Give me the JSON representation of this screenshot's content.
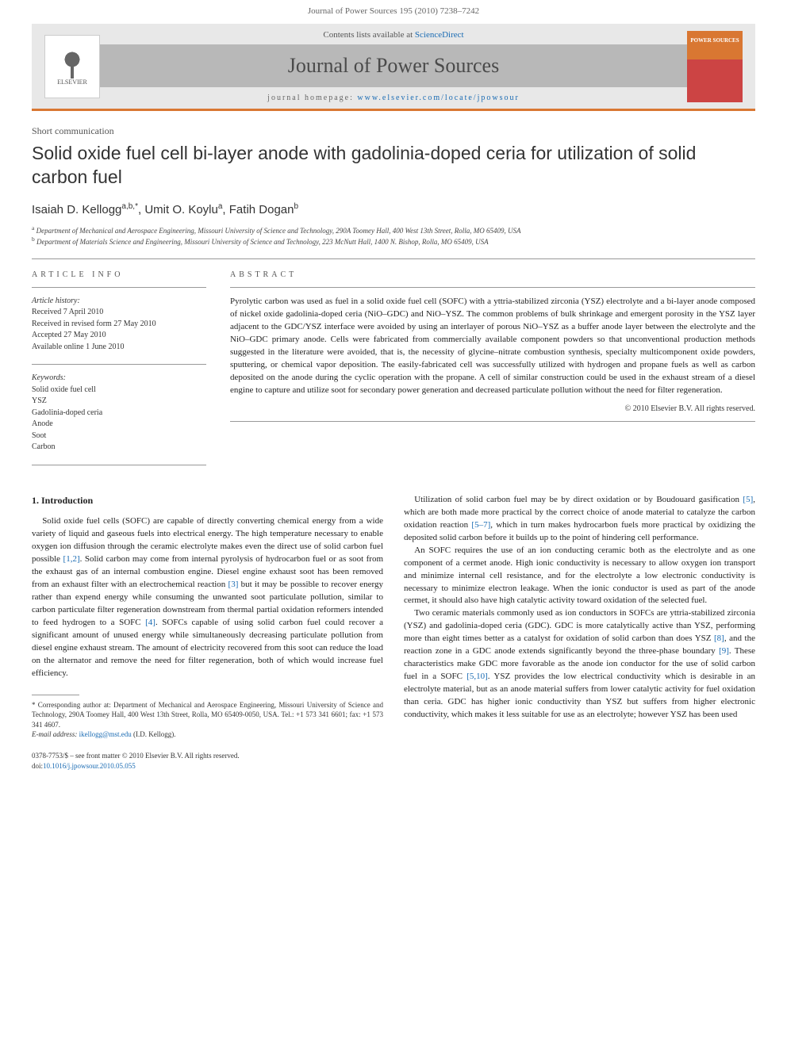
{
  "header": {
    "citation": "Journal of Power Sources 195 (2010) 7238–7242",
    "contents_available": "Contents lists available at",
    "sciencedirect": "ScienceDirect",
    "journal_name": "Journal of Power Sources",
    "homepage_label": "journal homepage:",
    "homepage_url": "www.elsevier.com/locate/jpowsour",
    "elsevier_label": "ELSEVIER",
    "cover_text": "POWER SOURCES"
  },
  "article": {
    "type": "Short communication",
    "title": "Solid oxide fuel cell bi-layer anode with gadolinia-doped ceria for utilization of solid carbon fuel",
    "authors_html": "Isaiah D. Kellogg",
    "author1": "Isaiah D. Kellogg",
    "author1_sup": "a,b,*",
    "author2": "Umit O. Koylu",
    "author2_sup": "a",
    "author3": "Fatih Dogan",
    "author3_sup": "b",
    "affil_a": "Department of Mechanical and Aerospace Engineering, Missouri University of Science and Technology, 290A Toomey Hall, 400 West 13th Street, Rolla, MO 65409, USA",
    "affil_b": "Department of Materials Science and Engineering, Missouri University of Science and Technology, 223 McNutt Hall, 1400 N. Bishop, Rolla, MO 65409, USA"
  },
  "info": {
    "section_label": "ARTICLE INFO",
    "history_label": "Article history:",
    "received": "Received 7 April 2010",
    "revised": "Received in revised form 27 May 2010",
    "accepted": "Accepted 27 May 2010",
    "online": "Available online 1 June 2010",
    "keywords_label": "Keywords:",
    "kw1": "Solid oxide fuel cell",
    "kw2": "YSZ",
    "kw3": "Gadolinia-doped ceria",
    "kw4": "Anode",
    "kw5": "Soot",
    "kw6": "Carbon"
  },
  "abstract": {
    "label": "ABSTRACT",
    "text": "Pyrolytic carbon was used as fuel in a solid oxide fuel cell (SOFC) with a yttria-stabilized zirconia (YSZ) electrolyte and a bi-layer anode composed of nickel oxide gadolinia-doped ceria (NiO–GDC) and NiO–YSZ. The common problems of bulk shrinkage and emergent porosity in the YSZ layer adjacent to the GDC/YSZ interface were avoided by using an interlayer of porous NiO–YSZ as a buffer anode layer between the electrolyte and the NiO–GDC primary anode. Cells were fabricated from commercially available component powders so that unconventional production methods suggested in the literature were avoided, that is, the necessity of glycine–nitrate combustion synthesis, specialty multicomponent oxide powders, sputtering, or chemical vapor deposition. The easily-fabricated cell was successfully utilized with hydrogen and propane fuels as well as carbon deposited on the anode during the cyclic operation with the propane. A cell of similar construction could be used in the exhaust stream of a diesel engine to capture and utilize soot for secondary power generation and decreased particulate pollution without the need for filter regeneration.",
    "copyright": "© 2010 Elsevier B.V. All rights reserved."
  },
  "body": {
    "intro_heading": "1. Introduction",
    "p1a": "Solid oxide fuel cells (SOFC) are capable of directly converting chemical energy from a wide variety of liquid and gaseous fuels into electrical energy. The high temperature necessary to enable oxygen ion diffusion through the ceramic electrolyte makes even the direct use of solid carbon fuel possible ",
    "r12": "[1,2]",
    "p1b": ". Solid carbon may come from internal pyrolysis of hydrocarbon fuel or as soot from the exhaust gas of an internal combustion engine. Diesel engine exhaust soot has been removed from an exhaust filter with an electrochemical reaction ",
    "r3": "[3]",
    "p1c": " but it may be possible to recover energy rather than expend energy while consuming the unwanted soot particulate pollution, similar to carbon particulate filter regeneration downstream from thermal partial oxidation reformers intended to feed hydrogen to a SOFC ",
    "r4": "[4]",
    "p1d": ". SOFCs capable of using solid carbon fuel could recover a significant amount of unused energy while simultaneously decreasing particulate pollution from diesel engine exhaust stream. The amount of electricity recovered from this soot can reduce the load on the alternator and remove the need for filter regeneration, both of which would increase fuel efficiency.",
    "p2a": "Utilization of solid carbon fuel may be by direct oxidation or by Boudouard gasification ",
    "r5": "[5]",
    "p2b": ", which are both made more practical by the correct choice of anode material to catalyze the carbon oxidation reaction ",
    "r57": "[5–7]",
    "p2c": ", which in turn makes hydrocarbon fuels more practical by oxidizing the deposited solid carbon before it builds up to the point of hindering cell performance.",
    "p3": "An SOFC requires the use of an ion conducting ceramic both as the electrolyte and as one component of a cermet anode. High ionic conductivity is necessary to allow oxygen ion transport and minimize internal cell resistance, and for the electrolyte a low electronic conductivity is necessary to minimize electron leakage. When the ionic conductor is used as part of the anode cermet, it should also have high catalytic activity toward oxidation of the selected fuel.",
    "p4a": "Two ceramic materials commonly used as ion conductors in SOFCs are yttria-stabilized zirconia (YSZ) and gadolinia-doped ceria (GDC). GDC is more catalytically active than YSZ, performing more than eight times better as a catalyst for oxidation of solid carbon than does YSZ ",
    "r8": "[8]",
    "p4b": ", and the reaction zone in a GDC anode extends significantly beyond the three-phase boundary ",
    "r9": "[9]",
    "p4c": ". These characteristics make GDC more favorable as the anode ion conductor for the use of solid carbon fuel in a SOFC ",
    "r510": "[5,10]",
    "p4d": ". YSZ provides the low electrical conductivity which is desirable in an electrolyte material, but as an anode material suffers from lower catalytic activity for fuel oxidation than ceria. GDC has higher ionic conductivity than YSZ but suffers from higher electronic conductivity, which makes it less suitable for use as an electrolyte; however YSZ has been used"
  },
  "footnote": {
    "corr_label": "* Corresponding author at: Department of Mechanical and Aerospace Engineering, Missouri University of Science and Technology, 290A Toomey Hall, 400 West 13th Street, Rolla, MO 65409-0050, USA. Tel.: +1 573 341 6601; fax: +1 573 341 4607.",
    "email_label": "E-mail address:",
    "email": "ikellogg@mst.edu",
    "email_suffix": "(I.D. Kellogg)."
  },
  "footer": {
    "issn": "0378-7753/$ – see front matter © 2010 Elsevier B.V. All rights reserved.",
    "doi_label": "doi:",
    "doi": "10.1016/j.jpowsour.2010.05.055"
  },
  "colors": {
    "orange": "#d97732",
    "link": "#1a6bb3",
    "gray_bar": "#b8b8b8",
    "light_gray": "#e8e8e8"
  }
}
